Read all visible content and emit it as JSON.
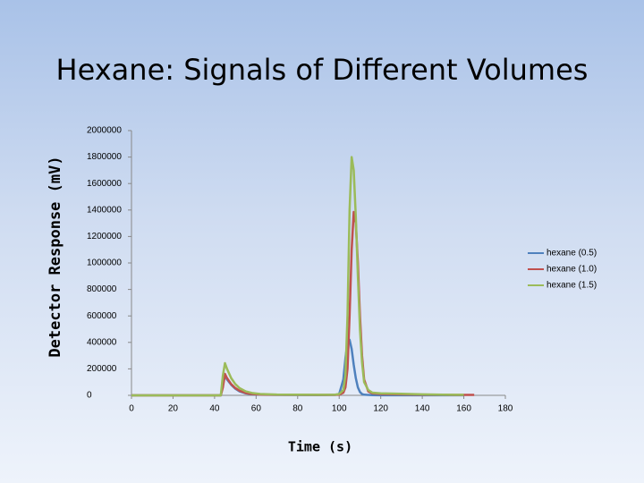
{
  "chart_data": {
    "type": "line",
    "title": "Hexane: Signals of Different Volumes",
    "y_label": "Detector Response (mV)",
    "x_label": "Time (s)",
    "x": [
      0,
      43,
      44,
      45,
      46,
      48,
      50,
      52,
      55,
      58,
      62,
      70,
      90,
      98,
      100,
      102,
      103,
      104,
      105,
      106,
      107,
      108,
      109,
      110,
      111,
      112,
      114,
      116,
      120,
      130,
      140,
      150,
      160,
      165
    ],
    "series": [
      {
        "name": "hexane (0.5)",
        "color": "#4f81bd",
        "values": [
          0,
          0,
          80000,
          150000,
          120000,
          80000,
          50000,
          30000,
          15000,
          8000,
          5000,
          3000,
          2000,
          3000,
          10000,
          120000,
          280000,
          400000,
          420000,
          350000,
          230000,
          130000,
          60000,
          25000,
          10000,
          5000,
          3000,
          2000,
          1000,
          1000,
          1000,
          1000,
          1000,
          null
        ]
      },
      {
        "name": "hexane (1.0)",
        "color": "#c0504d",
        "values": [
          0,
          0,
          60000,
          162000,
          130000,
          85000,
          55000,
          35000,
          18000,
          10000,
          6000,
          4000,
          3000,
          3000,
          5000,
          20000,
          60000,
          200000,
          600000,
          1100000,
          1385000,
          1300000,
          1000000,
          600000,
          300000,
          120000,
          30000,
          15000,
          10000,
          8000,
          5000,
          4000,
          3000,
          3000
        ]
      },
      {
        "name": "hexane (1.5)",
        "color": "#9bbb59",
        "values": [
          0,
          0,
          150000,
          243000,
          200000,
          130000,
          85000,
          55000,
          30000,
          18000,
          10000,
          6000,
          4000,
          5000,
          10000,
          40000,
          150000,
          600000,
          1400000,
          1800000,
          1700000,
          1350000,
          900000,
          500000,
          250000,
          100000,
          40000,
          20000,
          15000,
          12000,
          8000,
          5000,
          4000,
          null
        ]
      }
    ],
    "xlim": [
      0,
      180
    ],
    "xticks": [
      0,
      20,
      40,
      60,
      80,
      100,
      120,
      140,
      160,
      180
    ],
    "ylim": [
      0,
      2000000
    ],
    "yticks": [
      0,
      200000,
      400000,
      600000,
      800000,
      1000000,
      1200000,
      1400000,
      1600000,
      1800000,
      2000000
    ],
    "grid": false,
    "legend": "right"
  }
}
